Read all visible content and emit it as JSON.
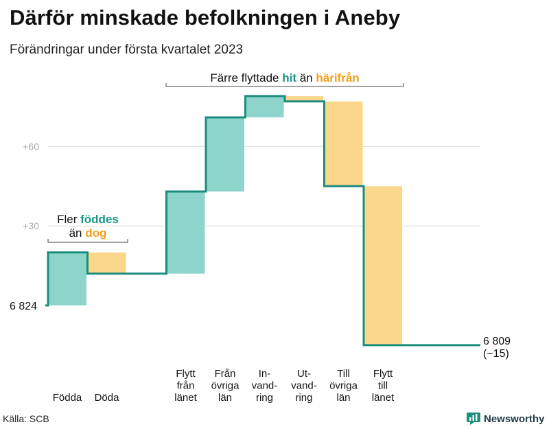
{
  "title": "Därför minskade befolkningen i Aneby",
  "subtitle": "Förändringar under första kvartalet 2023",
  "source": "Källa: SCB",
  "brand": "Newsworthy",
  "colors": {
    "increase": "#8dd5cb",
    "decrease": "#fbd78c",
    "line": "#1b8c7d",
    "teal_text": "#1b9486",
    "orange_text": "#f29f1c",
    "grid": "#dcdcdc",
    "tick": "#aaaaaa"
  },
  "annotations": {
    "left": {
      "line1_pre": "Fler ",
      "line1_hl": "föddes",
      "line2_pre": "än ",
      "line2_hl": "dog"
    },
    "top": {
      "pre": "Färre flyttade ",
      "hl1": "hit",
      "mid": " än ",
      "hl2": "härifrån"
    }
  },
  "chart_data": {
    "type": "waterfall",
    "start": {
      "value": 6824,
      "label": "6 824"
    },
    "end": {
      "value": 6809,
      "label": "6 809",
      "change_label": "(−15)"
    },
    "steps": [
      {
        "category": [
          "Födda"
        ],
        "change": 20,
        "kind": "increase"
      },
      {
        "category": [
          "Döda"
        ],
        "change": -8,
        "kind": "decrease"
      },
      {
        "category": [],
        "change": 0,
        "kind": "gap"
      },
      {
        "category": [
          "Flytt",
          "från",
          "länet"
        ],
        "change": 31,
        "kind": "increase"
      },
      {
        "category": [
          "Från",
          "övriga",
          "län"
        ],
        "change": 28,
        "kind": "increase"
      },
      {
        "category": [
          "In-",
          "vand-",
          "ring"
        ],
        "change": 8,
        "kind": "increase"
      },
      {
        "category": [
          "Ut-",
          "vand-",
          "ring"
        ],
        "change": -2,
        "kind": "decrease"
      },
      {
        "category": [
          "Till",
          "övriga",
          "län"
        ],
        "change": -32,
        "kind": "decrease"
      },
      {
        "category": [
          "Flytt",
          "till",
          "länet"
        ],
        "change": -60,
        "kind": "decrease"
      }
    ],
    "yticks": [
      {
        "value": 30,
        "label": "+30"
      },
      {
        "value": 60,
        "label": "+60"
      }
    ],
    "grid": true
  }
}
